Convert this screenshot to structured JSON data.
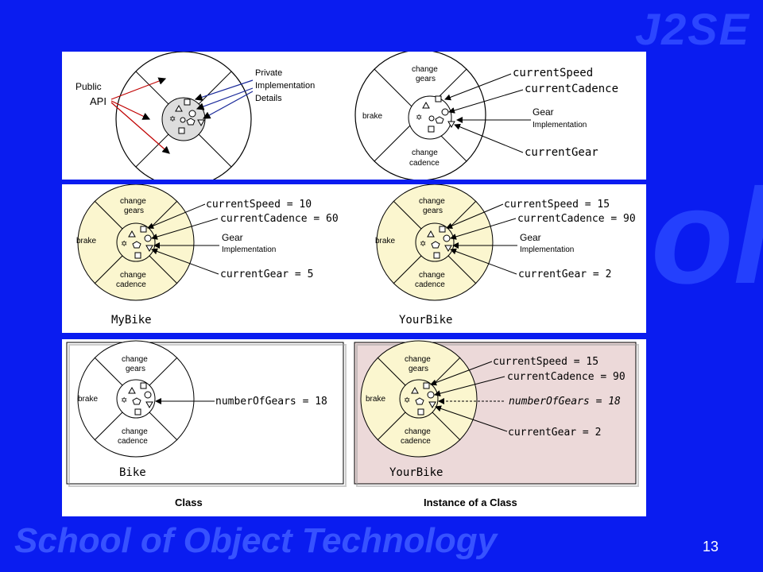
{
  "watermarks": {
    "top_right": "J2SE",
    "bottom": "School of Object Technology",
    "center": "Sch   ol"
  },
  "page_number": "13",
  "panel1": {
    "public_label": "Public",
    "api_label": "API",
    "private_label_1": "Private",
    "private_label_2": "Implementation",
    "private_label_3": "Details",
    "right": {
      "segment_top_1": "change",
      "segment_top_2": "gears",
      "segment_left": "brake",
      "segment_bottom_1": "change",
      "segment_bottom_2": "cadence",
      "current_speed": "currentSpeed",
      "current_cadence": "currentCadence",
      "gear_impl_1": "Gear",
      "gear_impl_2": "Implementation",
      "current_gear": "currentGear"
    }
  },
  "panel2": {
    "left": {
      "segment_top_1": "change",
      "segment_top_2": "gears",
      "segment_left": "brake",
      "segment_bottom_1": "change",
      "segment_bottom_2": "cadence",
      "current_speed": "currentSpeed = 10",
      "current_cadence": "currentCadence = 60",
      "gear_impl_1": "Gear",
      "gear_impl_2": "Implementation",
      "current_gear": "currentGear = 5",
      "caption": "MyBike"
    },
    "right": {
      "segment_top_1": "change",
      "segment_top_2": "gears",
      "segment_left": "brake",
      "segment_bottom_1": "change",
      "segment_bottom_2": "cadence",
      "current_speed": "currentSpeed = 15",
      "current_cadence": "currentCadence = 90",
      "gear_impl_1": "Gear",
      "gear_impl_2": "Implementation",
      "current_gear": "currentGear = 2",
      "caption": "YourBike"
    }
  },
  "panel3": {
    "left": {
      "segment_top_1": "change",
      "segment_top_2": "gears",
      "segment_left": "brake",
      "segment_bottom_1": "change",
      "segment_bottom_2": "cadence",
      "number_of_gears": "numberOfGears = 18",
      "caption": "Bike",
      "footer": "Class"
    },
    "right": {
      "segment_top_1": "change",
      "segment_top_2": "gears",
      "segment_left": "brake",
      "segment_bottom_1": "change",
      "segment_bottom_2": "cadence",
      "current_speed": "currentSpeed = 15",
      "current_cadence": "currentCadence = 90",
      "number_of_gears": "numberOfGears = 18",
      "current_gear": "currentGear = 2",
      "caption": "YourBike",
      "footer": "Instance of a Class"
    }
  },
  "colors": {
    "background": "#0a1cf0",
    "wheel_fill": "#fbf6cf",
    "instance_bg": "#ecd9d9",
    "arrow_red": "#c00000",
    "arrow_blue": "#1a2a9a"
  }
}
